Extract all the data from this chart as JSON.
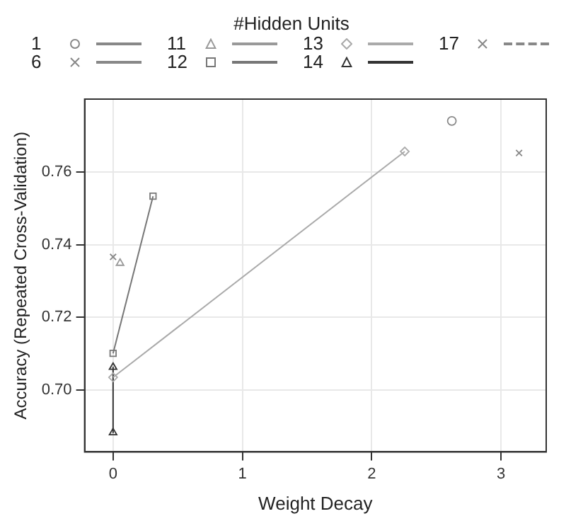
{
  "chart_data": {
    "type": "line",
    "xlabel": "Weight Decay",
    "ylabel": "Accuracy (Repeated Cross-Validation)",
    "legend_title": "#Hidden Units",
    "legend": "top",
    "grid": true,
    "xlim": [
      -0.22,
      3.35
    ],
    "xticks": [
      0,
      1,
      2,
      3
    ],
    "ylim": [
      0.683,
      0.78
    ],
    "yticks": [
      {
        "value": 0.7,
        "label": "0.70"
      },
      0.72,
      0.74,
      0.76
    ],
    "series": [
      {
        "name": "1",
        "color": "#888888",
        "marker": "circle",
        "x": [
          2.62
        ],
        "values": [
          0.774
        ]
      },
      {
        "name": "6",
        "color": "#888888",
        "marker": "cross",
        "x": [
          0
        ],
        "values": [
          0.7366
        ]
      },
      {
        "name": "11",
        "color": "#999999",
        "marker": "triangle",
        "x": [
          0.054
        ],
        "values": [
          0.7349
        ]
      },
      {
        "name": "12",
        "color": "#777777",
        "marker": "square",
        "x": [
          0,
          0.309
        ],
        "values": [
          0.7101,
          0.7533
        ]
      },
      {
        "name": "13",
        "color": "#aaaaaa",
        "marker": "diamond",
        "x": [
          0,
          2.256
        ],
        "values": [
          0.7035,
          0.7656
        ]
      },
      {
        "name": "14",
        "color": "#333333",
        "marker": "triangle",
        "x": [
          0,
          0
        ],
        "values": [
          0.7063,
          0.6883
        ]
      },
      {
        "name": "17",
        "color": "#888888",
        "marker": "cross",
        "line_style": "dashed",
        "x": [
          3.14
        ],
        "values": [
          0.7652
        ]
      }
    ]
  }
}
